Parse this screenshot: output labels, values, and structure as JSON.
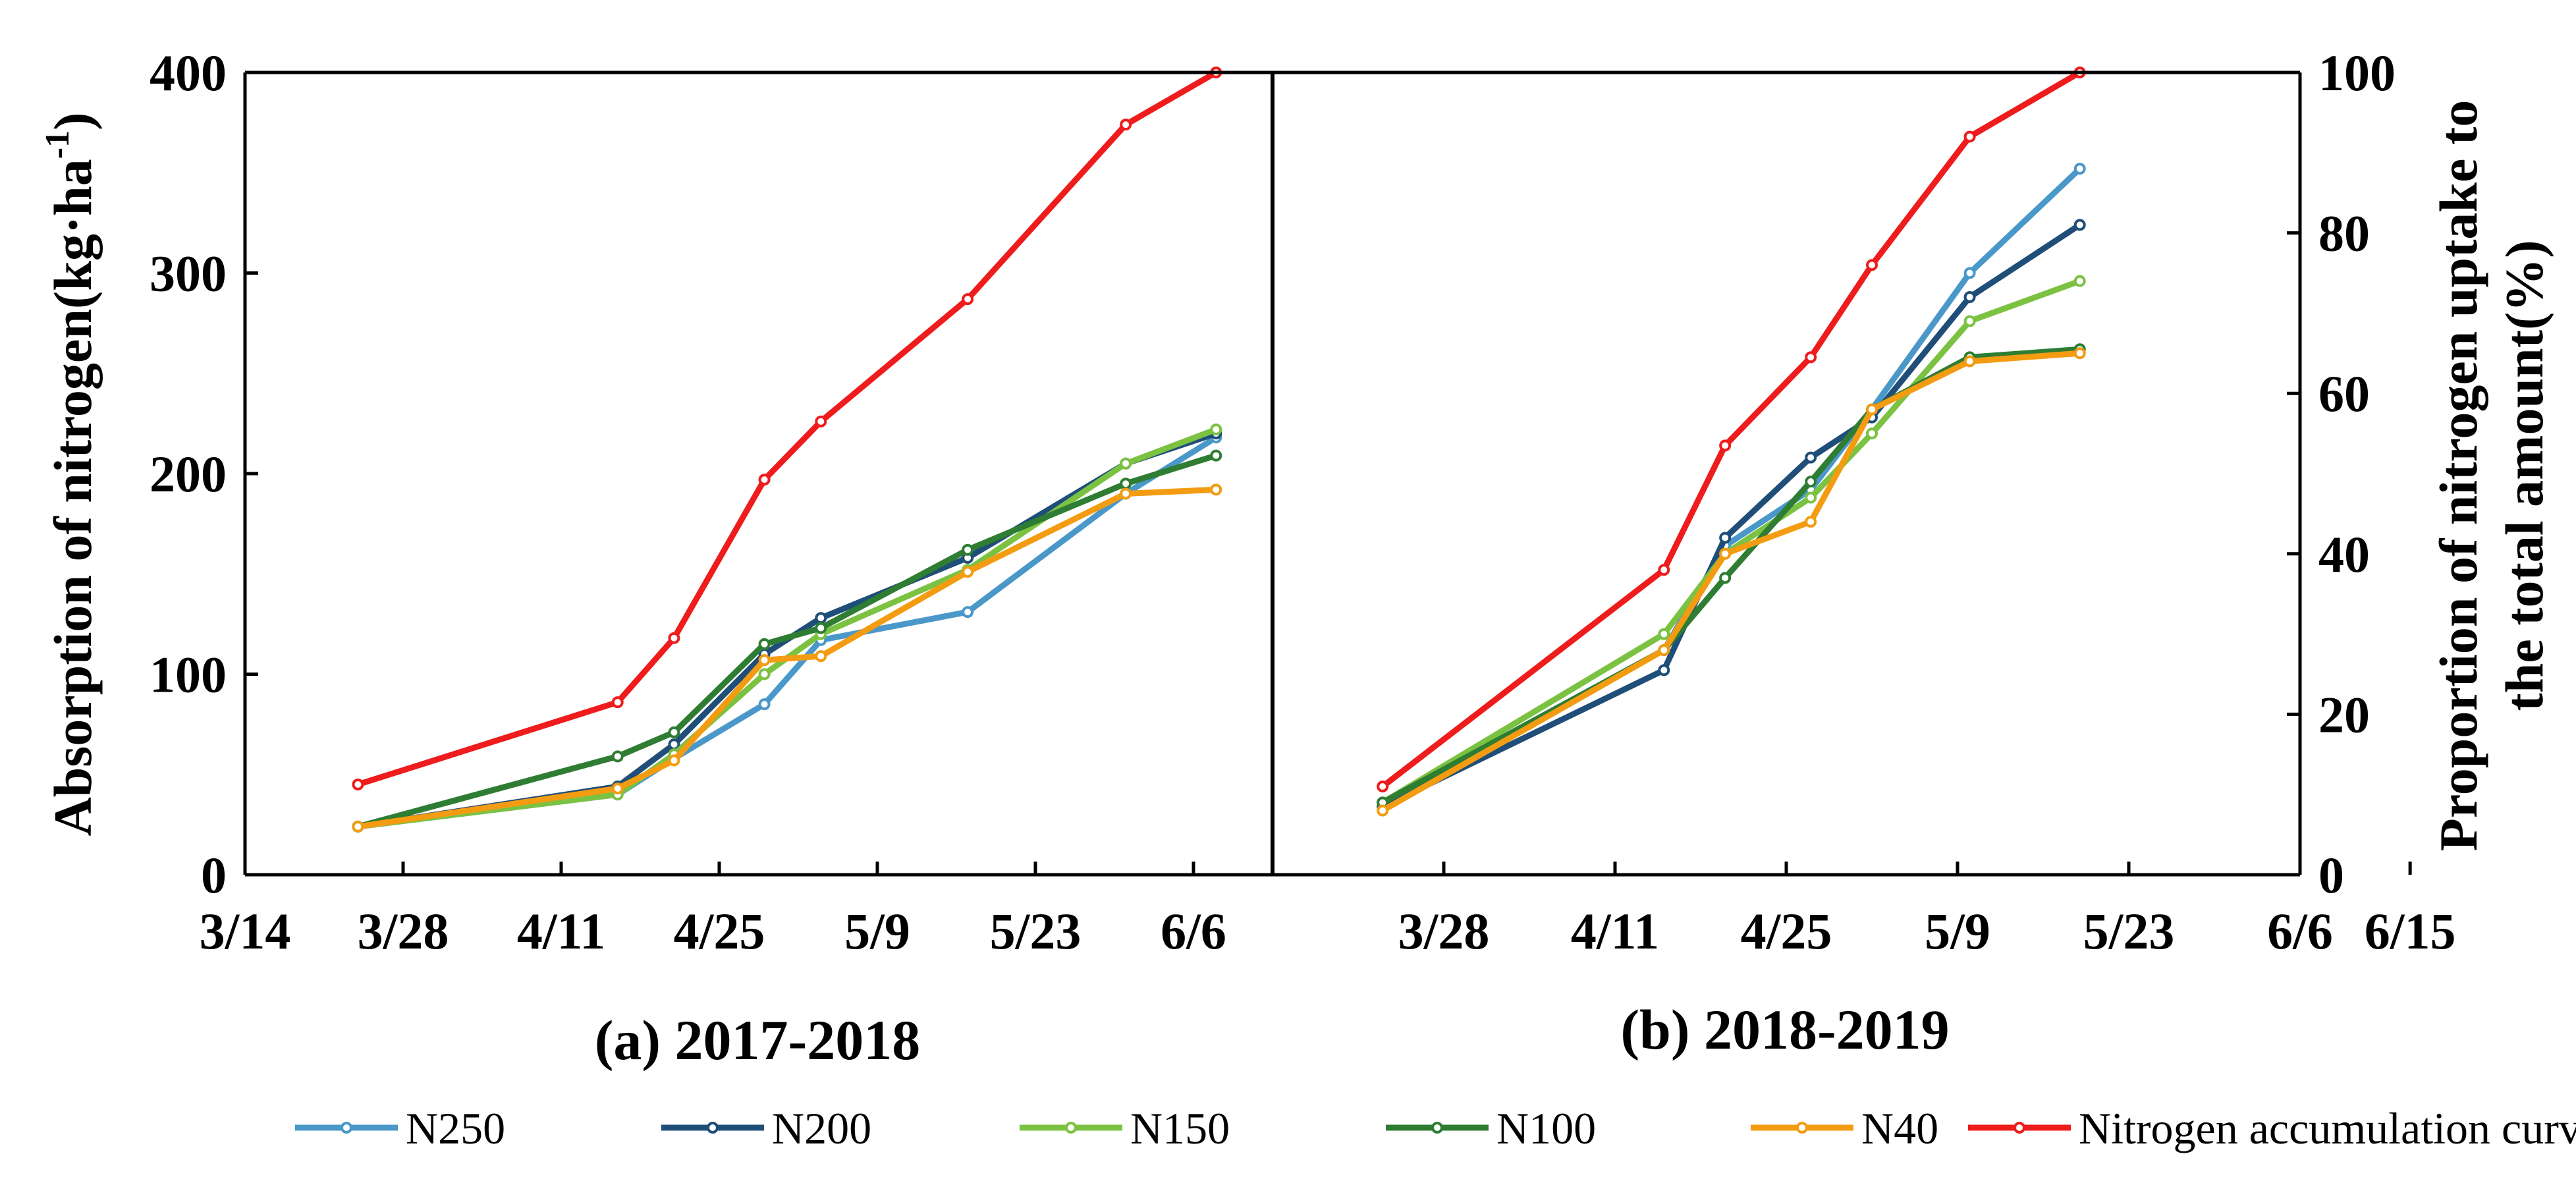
{
  "chart_data": [
    {
      "type": "line",
      "title": "(a) 2017-2018",
      "ylabel_main": "Absorption of nitrogen(kg·ha",
      "ylabel_sup": "-1",
      "ylabel_close": ")",
      "ylim": [
        0,
        400
      ],
      "yticks": [
        "0",
        "100",
        "200",
        "300",
        "400"
      ],
      "xlim_days": [
        0,
        91
      ],
      "xticks": [
        {
          "label": "3/14",
          "day": 0
        },
        {
          "label": "3/28",
          "day": 14
        },
        {
          "label": "4/11",
          "day": 28
        },
        {
          "label": "4/25",
          "day": 42
        },
        {
          "label": "5/9",
          "day": 56
        },
        {
          "label": "5/23",
          "day": 70
        },
        {
          "label": "6/6",
          "day": 84
        }
      ],
      "series": [
        {
          "name": "N250",
          "color": "#4a98c9",
          "points": [
            [
              10,
              24
            ],
            [
              33,
              40
            ],
            [
              38,
              58
            ],
            [
              46,
              85
            ],
            [
              51,
              117
            ],
            [
              64,
              131
            ],
            [
              78,
              190
            ],
            [
              86,
              218
            ]
          ]
        },
        {
          "name": "N200",
          "color": "#1f4e79",
          "points": [
            [
              10,
              24
            ],
            [
              33,
              44
            ],
            [
              38,
              65
            ],
            [
              46,
              110
            ],
            [
              51,
              128
            ],
            [
              64,
              158
            ],
            [
              78,
              205
            ],
            [
              86,
              220
            ]
          ]
        },
        {
          "name": "N150",
          "color": "#7cc242",
          "points": [
            [
              10,
              24
            ],
            [
              33,
              40
            ],
            [
              38,
              60
            ],
            [
              46,
              100
            ],
            [
              51,
              120
            ],
            [
              64,
              152
            ],
            [
              78,
              205
            ],
            [
              86,
              222
            ]
          ]
        },
        {
          "name": "N100",
          "color": "#2e7d32",
          "points": [
            [
              10,
              24
            ],
            [
              33,
              59
            ],
            [
              38,
              71
            ],
            [
              46,
              115
            ],
            [
              51,
              123
            ],
            [
              64,
              162
            ],
            [
              78,
              195
            ],
            [
              86,
              209
            ]
          ]
        },
        {
          "name": "N40",
          "color": "#f39c12",
          "points": [
            [
              10,
              24
            ],
            [
              33,
              43
            ],
            [
              38,
              57
            ],
            [
              46,
              107
            ],
            [
              51,
              109
            ],
            [
              64,
              151
            ],
            [
              78,
              190
            ],
            [
              86,
              192
            ]
          ]
        },
        {
          "name": "Nitrogen accumulation curve",
          "color": "#ee1c1c",
          "points": [
            [
              10,
              45
            ],
            [
              33,
              86
            ],
            [
              38,
              118
            ],
            [
              46,
              197
            ],
            [
              51,
              226
            ],
            [
              64,
              287
            ],
            [
              78,
              374
            ],
            [
              86,
              400
            ]
          ]
        }
      ]
    },
    {
      "type": "line",
      "title": "(b) 2018-2019",
      "ylabel_line1": "Proportion of nitrogen uptake to",
      "ylabel_line2": "the total amount(%)",
      "ylim": [
        0,
        100
      ],
      "yticks": [
        "0",
        "20",
        "40",
        "60",
        "80",
        "100"
      ],
      "xlim_days": [
        0,
        84
      ],
      "xticks": [
        {
          "label": "3/28",
          "day": 14
        },
        {
          "label": "4/11",
          "day": 28
        },
        {
          "label": "4/25",
          "day": 42
        },
        {
          "label": "5/9",
          "day": 56
        },
        {
          "label": "5/23",
          "day": 70
        },
        {
          "label": "6/6",
          "day": 84
        },
        {
          "label": "6/15",
          "day": 93
        }
      ],
      "series": [
        {
          "name": "N250",
          "color": "#4a98c9",
          "points": [
            [
              9,
              9
            ],
            [
              32,
              28
            ],
            [
              37,
              41
            ],
            [
              44,
              48
            ],
            [
              49,
              58
            ],
            [
              57,
              75
            ],
            [
              66,
              88
            ]
          ]
        },
        {
          "name": "N200",
          "color": "#1f4e79",
          "points": [
            [
              9,
              8.5
            ],
            [
              32,
              25.5
            ],
            [
              37,
              42
            ],
            [
              44,
              52
            ],
            [
              49,
              57
            ],
            [
              57,
              72
            ],
            [
              66,
              81
            ]
          ]
        },
        {
          "name": "N150",
          "color": "#7cc242",
          "points": [
            [
              9,
              9
            ],
            [
              32,
              30
            ],
            [
              37,
              40
            ],
            [
              44,
              47
            ],
            [
              49,
              55
            ],
            [
              57,
              69
            ],
            [
              66,
              74
            ]
          ]
        },
        {
          "name": "N100",
          "color": "#2e7d32",
          "points": [
            [
              9,
              9
            ],
            [
              32,
              28
            ],
            [
              37,
              37
            ],
            [
              44,
              49
            ],
            [
              49,
              58
            ],
            [
              57,
              64.5
            ],
            [
              66,
              65.5
            ]
          ]
        },
        {
          "name": "N40",
          "color": "#f39c12",
          "points": [
            [
              9,
              8
            ],
            [
              32,
              28
            ],
            [
              37,
              40
            ],
            [
              44,
              44
            ],
            [
              49,
              58
            ],
            [
              57,
              64
            ],
            [
              66,
              65
            ]
          ]
        },
        {
          "name": "Nitrogen accumulation curve",
          "color": "#ee1c1c",
          "points": [
            [
              9,
              11
            ],
            [
              32,
              38
            ],
            [
              37,
              53.5
            ],
            [
              44,
              64.5
            ],
            [
              49,
              76
            ],
            [
              57,
              92
            ],
            [
              66,
              100
            ]
          ]
        }
      ]
    }
  ],
  "legend": [
    {
      "label": "N250",
      "color": "#4a98c9"
    },
    {
      "label": "N200",
      "color": "#1f4e79"
    },
    {
      "label": "N150",
      "color": "#7cc242"
    },
    {
      "label": "N100",
      "color": "#2e7d32"
    },
    {
      "label": "N40",
      "color": "#f39c12"
    },
    {
      "label": "Nitrogen accumulation curve",
      "color": "#ee1c1c"
    }
  ]
}
